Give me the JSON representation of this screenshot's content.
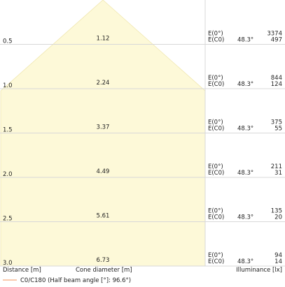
{
  "chart_data": {
    "type": "area",
    "distances": [
      "0.5",
      "1.0",
      "1.5",
      "2.0",
      "2.5",
      "3.0"
    ],
    "cone_diameters": [
      "1.12",
      "2.24",
      "3.37",
      "4.49",
      "5.61",
      "6.73"
    ],
    "rows": [
      {
        "label_max": "E(0°)",
        "label_c0": "E(C0)",
        "angle": "48.3°",
        "e_max": "3374",
        "e_c0": "497"
      },
      {
        "label_max": "E(0°)",
        "label_c0": "E(C0)",
        "angle": "48.3°",
        "e_max": "844",
        "e_c0": "124"
      },
      {
        "label_max": "E(0°)",
        "label_c0": "E(C0)",
        "angle": "48.3°",
        "e_max": "375",
        "e_c0": "55"
      },
      {
        "label_max": "E(0°)",
        "label_c0": "E(C0)",
        "angle": "48.3°",
        "e_max": "211",
        "e_c0": "31"
      },
      {
        "label_max": "E(0°)",
        "label_c0": "E(C0)",
        "angle": "48.3°",
        "e_max": "135",
        "e_c0": "20"
      },
      {
        "label_max": "E(0°)",
        "label_c0": "E(C0)",
        "angle": "48.3°",
        "e_max": "94",
        "e_c0": "14"
      }
    ],
    "axis_labels": {
      "distance": "Distance [m]",
      "cone": "Cone diameter [m]",
      "illuminance": "Illuminance [lx]"
    },
    "legend": {
      "label": "C0/C180 (Half beam angle [°]: 96.6°)",
      "half_beam_angle": 48.3,
      "color": "#f5a97a"
    },
    "colors": {
      "cone_fill": "#fdf9d8",
      "cone_fill_deep": "#fbf3c6",
      "cone_edge": "#f0e7b0",
      "grid": "#d8d8d8",
      "text": "#222222"
    }
  }
}
